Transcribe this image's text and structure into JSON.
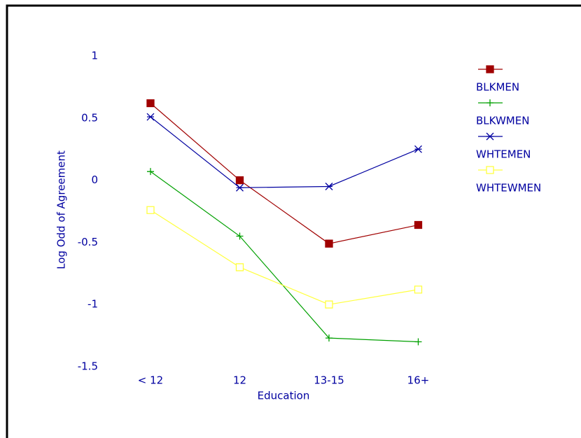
{
  "chart_data": {
    "type": "line",
    "x_label": "Education",
    "y_label": "Log Odd of Agreement",
    "categories": [
      "< 12",
      "12",
      "13-15",
      "16+"
    ],
    "ylim": [
      -1.5,
      1
    ],
    "yticks": [
      -1.5,
      -1,
      -0.5,
      0,
      0.5,
      1
    ],
    "series": [
      {
        "name": "BLKMEN",
        "color": "#a00000",
        "marker": "filled-square",
        "values": [
          0.62,
          0.0,
          -0.51,
          -0.36
        ]
      },
      {
        "name": "BLKWMEN",
        "color": "#00a000",
        "marker": "plus",
        "values": [
          0.07,
          -0.45,
          -1.27,
          -1.3
        ]
      },
      {
        "name": "WHTEMEN",
        "color": "#0000a0",
        "marker": "asterisk",
        "values": [
          0.51,
          -0.06,
          -0.05,
          0.25
        ]
      },
      {
        "name": "WHTEWMEN",
        "color": "#ffff40",
        "marker": "open-square",
        "values": [
          -0.24,
          -0.7,
          -1.0,
          -0.88
        ]
      }
    ]
  }
}
